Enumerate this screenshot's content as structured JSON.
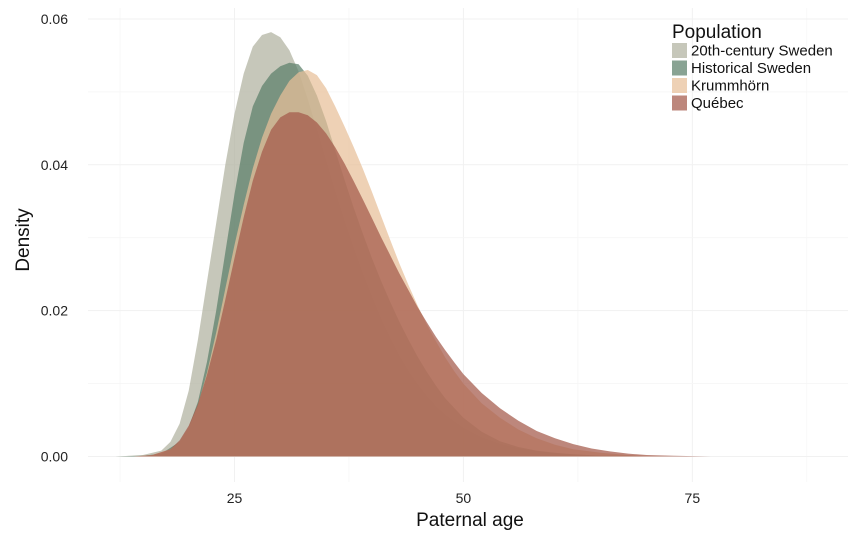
{
  "chart_data": {
    "type": "area",
    "subtype": "density",
    "xlabel": "Paternal age",
    "ylabel": "Density",
    "xlim": [
      9,
      92
    ],
    "ylim": [
      -0.0035,
      0.0615
    ],
    "x_ticks": [
      25,
      50,
      75
    ],
    "y_ticks": [
      0.0,
      0.02,
      0.04,
      0.06
    ],
    "y_tick_labels": [
      "0.00",
      "0.02",
      "0.04",
      "0.06"
    ],
    "grid": true,
    "legend": {
      "title": "Population",
      "position": "top-right"
    },
    "series": [
      {
        "name": "20th-century Sweden",
        "color": "#b0b19f",
        "x": [
          12,
          15,
          17,
          18,
          19,
          20,
          21,
          22,
          23,
          24,
          25,
          26,
          27,
          28,
          29,
          30,
          31,
          32,
          33,
          34,
          35,
          36,
          37,
          38,
          39,
          40,
          41,
          42,
          43,
          44,
          45,
          46,
          47,
          48,
          50,
          52,
          54,
          56,
          58,
          60,
          62,
          65,
          68,
          70,
          73,
          76
        ],
        "y": [
          0.0,
          0.0002,
          0.0008,
          0.002,
          0.0045,
          0.009,
          0.016,
          0.024,
          0.032,
          0.04,
          0.047,
          0.0525,
          0.0562,
          0.0578,
          0.0582,
          0.0575,
          0.0557,
          0.0528,
          0.049,
          0.0448,
          0.0405,
          0.0363,
          0.0323,
          0.0286,
          0.0251,
          0.0219,
          0.0189,
          0.0162,
          0.0138,
          0.0117,
          0.0099,
          0.0083,
          0.0069,
          0.0057,
          0.0039,
          0.0026,
          0.0017,
          0.0011,
          0.0007,
          0.0004,
          0.0003,
          0.0001,
          0.0001,
          0.0,
          0.0,
          0.0
        ]
      },
      {
        "name": "Historical Sweden",
        "color": "#5b7f69",
        "x": [
          12,
          15,
          17,
          19,
          20,
          21,
          22,
          23,
          24,
          25,
          26,
          27,
          28,
          29,
          30,
          31,
          32,
          33,
          34,
          35,
          36,
          37,
          38,
          39,
          40,
          41,
          42,
          43,
          44,
          45,
          46,
          47,
          48,
          50,
          52,
          54,
          56,
          58,
          60,
          62,
          65,
          68,
          70,
          73,
          76
        ],
        "y": [
          0.0,
          0.0001,
          0.0004,
          0.002,
          0.004,
          0.0075,
          0.013,
          0.02,
          0.028,
          0.036,
          0.043,
          0.048,
          0.0508,
          0.0525,
          0.0535,
          0.054,
          0.0538,
          0.0522,
          0.0495,
          0.046,
          0.042,
          0.038,
          0.0342,
          0.0306,
          0.0272,
          0.0241,
          0.0212,
          0.0185,
          0.016,
          0.0137,
          0.0116,
          0.0097,
          0.008,
          0.0053,
          0.0034,
          0.0021,
          0.0013,
          0.0008,
          0.0005,
          0.0003,
          0.0001,
          0.0001,
          0.0,
          0.0,
          0.0
        ]
      },
      {
        "name": "Krummhörn",
        "color": "#e8bf99",
        "x": [
          14,
          16,
          18,
          19,
          20,
          21,
          22,
          23,
          24,
          25,
          26,
          27,
          28,
          29,
          30,
          31,
          32,
          33,
          34,
          35,
          36,
          37,
          38,
          39,
          40,
          41,
          42,
          43,
          44,
          45,
          46,
          47,
          48,
          49,
          50,
          52,
          54,
          56,
          58,
          60,
          62,
          65,
          68,
          70,
          73,
          76
        ],
        "y": [
          0.0,
          0.0002,
          0.001,
          0.002,
          0.004,
          0.007,
          0.0115,
          0.017,
          0.023,
          0.029,
          0.0345,
          0.0395,
          0.0437,
          0.047,
          0.0495,
          0.0515,
          0.0527,
          0.053,
          0.0523,
          0.0505,
          0.048,
          0.0453,
          0.0425,
          0.0395,
          0.0363,
          0.033,
          0.0297,
          0.0265,
          0.0235,
          0.0207,
          0.0181,
          0.0158,
          0.0136,
          0.0117,
          0.01,
          0.0073,
          0.0053,
          0.0037,
          0.0025,
          0.0016,
          0.001,
          0.0005,
          0.0002,
          0.0001,
          0.0,
          0.0
        ]
      },
      {
        "name": "Québec",
        "color": "#a35949",
        "x": [
          14,
          16,
          18,
          19,
          20,
          21,
          22,
          23,
          24,
          25,
          26,
          27,
          28,
          29,
          30,
          31,
          32,
          33,
          34,
          35,
          36,
          37,
          38,
          39,
          40,
          41,
          42,
          43,
          44,
          45,
          46,
          47,
          48,
          49,
          50,
          52,
          54,
          56,
          58,
          60,
          62,
          64,
          66,
          68,
          70,
          73,
          77
        ],
        "y": [
          0.0,
          0.0002,
          0.001,
          0.0022,
          0.0042,
          0.0072,
          0.0112,
          0.016,
          0.0215,
          0.0272,
          0.0328,
          0.0378,
          0.0418,
          0.0448,
          0.0465,
          0.0472,
          0.0472,
          0.0468,
          0.0458,
          0.0443,
          0.0424,
          0.0402,
          0.0378,
          0.0353,
          0.0327,
          0.0301,
          0.0276,
          0.0251,
          0.0228,
          0.0205,
          0.0184,
          0.0164,
          0.0146,
          0.0129,
          0.0113,
          0.0087,
          0.0066,
          0.0049,
          0.0035,
          0.0025,
          0.0017,
          0.0011,
          0.0007,
          0.0004,
          0.0002,
          0.0001,
          0.0
        ]
      }
    ]
  }
}
